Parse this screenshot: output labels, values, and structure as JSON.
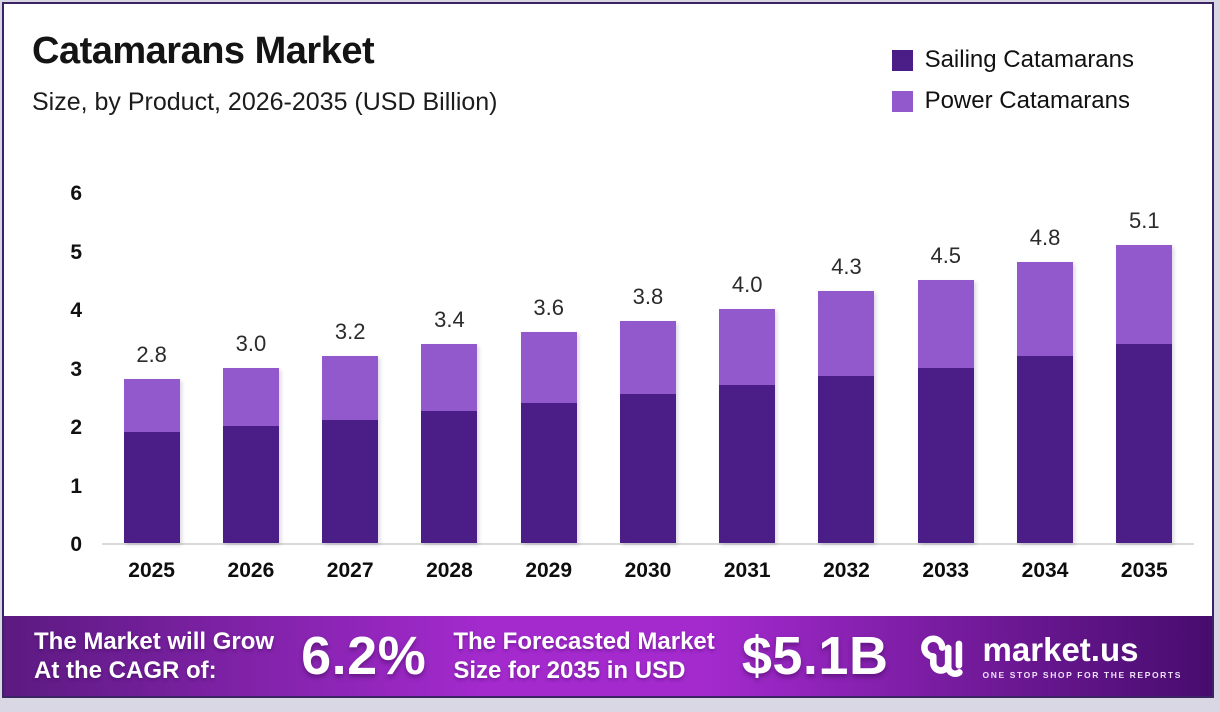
{
  "header": {
    "title": "Catamarans Market",
    "subtitle": "Size, by Product, 2026-2035 (USD Billion)"
  },
  "chart_data": {
    "type": "bar",
    "stacked": true,
    "title": "Catamarans Market",
    "subtitle": "Size, by Product, 2026-2035 (USD Billion)",
    "categories": [
      "2025",
      "2026",
      "2027",
      "2028",
      "2029",
      "2030",
      "2031",
      "2032",
      "2033",
      "2034",
      "2035"
    ],
    "series": [
      {
        "name": "Sailing Catamarans",
        "color": "#4a1d87",
        "values": [
          1.9,
          2.0,
          2.1,
          2.25,
          2.4,
          2.55,
          2.7,
          2.85,
          3.0,
          3.2,
          3.4
        ]
      },
      {
        "name": "Power Catamarans",
        "color": "#9159cc",
        "values": [
          0.9,
          1.0,
          1.1,
          1.15,
          1.2,
          1.25,
          1.3,
          1.45,
          1.5,
          1.6,
          1.7
        ]
      }
    ],
    "totals": [
      2.8,
      3.0,
      3.2,
      3.4,
      3.6,
      3.8,
      4.0,
      4.3,
      4.5,
      4.8,
      5.1
    ],
    "total_labels": [
      "2.8",
      "3.0",
      "3.2",
      "3.4",
      "3.6",
      "3.8",
      "4.0",
      "4.3",
      "4.5",
      "4.8",
      "5.1"
    ],
    "xlabel": "",
    "ylabel": "",
    "ylim": [
      0,
      6
    ],
    "yticks": [
      0,
      1,
      2,
      3,
      4,
      5,
      6
    ],
    "grid": false,
    "legend_position": "top-right",
    "value_labels": "totals shown above each stacked bar"
  },
  "banner": {
    "cagr_line1": "The Market will Grow",
    "cagr_line2": "At the CAGR of:",
    "cagr_value": "6.2%",
    "forecast_line1": "The Forecasted Market",
    "forecast_line2": "Size for 2035 in USD",
    "forecast_value": "$5.1B",
    "brand": "market.us",
    "brand_tagline": "ONE STOP SHOP FOR THE REPORTS"
  },
  "colors": {
    "sailing_bar": "#4a1d87",
    "power_bar": "#9159cc",
    "frame_border": "#3c2363",
    "banner_gradient_left": "#5c1a81",
    "banner_gradient_mid": "#a42ace",
    "banner_gradient_right": "#470c6d",
    "axis_line": "#d9d9d9"
  }
}
